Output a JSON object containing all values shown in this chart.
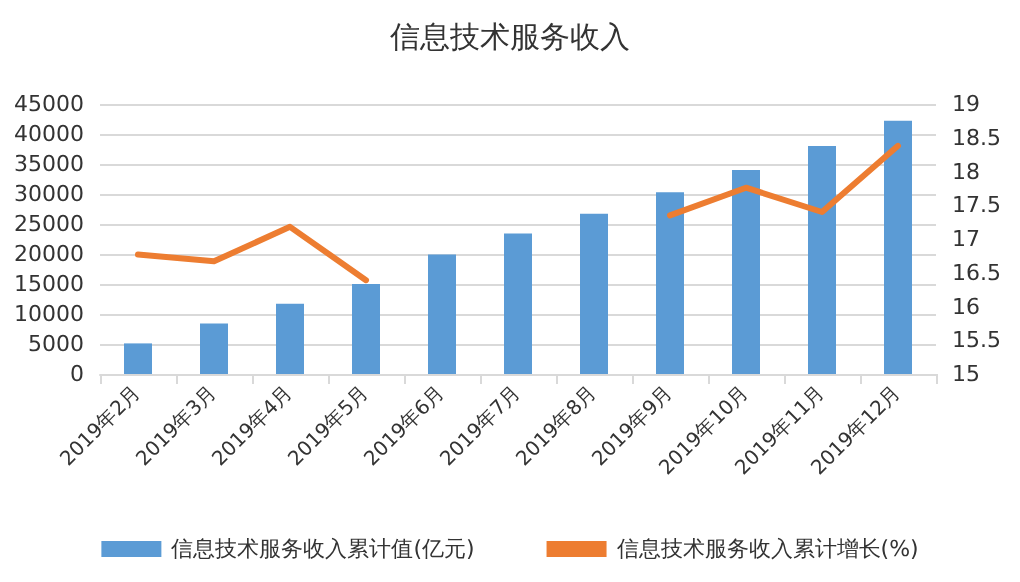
{
  "chart_data": {
    "type": "bar",
    "title": "信息技术服务收入",
    "categories": [
      "2019年2月",
      "2019年3月",
      "2019年4月",
      "2019年5月",
      "2019年6月",
      "2019年7月",
      "2019年8月",
      "2019年9月",
      "2019年10月",
      "2019年11月",
      "2019年12月"
    ],
    "series": [
      {
        "name": "信息技术服务收入累计值(亿元)",
        "color": "#5b9bd5",
        "values": [
          5100,
          8400,
          11700,
          15000,
          19900,
          23400,
          26700,
          30300,
          34000,
          38000,
          42200
        ]
      },
      {
        "name": "信息技术服务收入累计增长(%)",
        "type": "line",
        "axis": "y2",
        "color": "#ed7d31",
        "values": [
          16.77,
          16.67,
          17.18,
          16.39,
          null,
          null,
          null,
          17.35,
          17.76,
          17.4,
          18.38
        ]
      }
    ],
    "ylim": [
      0,
      45000
    ],
    "yticks": [
      0,
      5000,
      10000,
      15000,
      20000,
      25000,
      30000,
      35000,
      40000,
      45000
    ],
    "y2lim": [
      15,
      19
    ],
    "y2ticks": [
      15,
      15.5,
      16,
      16.5,
      17,
      17.5,
      18,
      18.5,
      19
    ],
    "grid": "y",
    "legend": "bottom",
    "marker": "none"
  }
}
